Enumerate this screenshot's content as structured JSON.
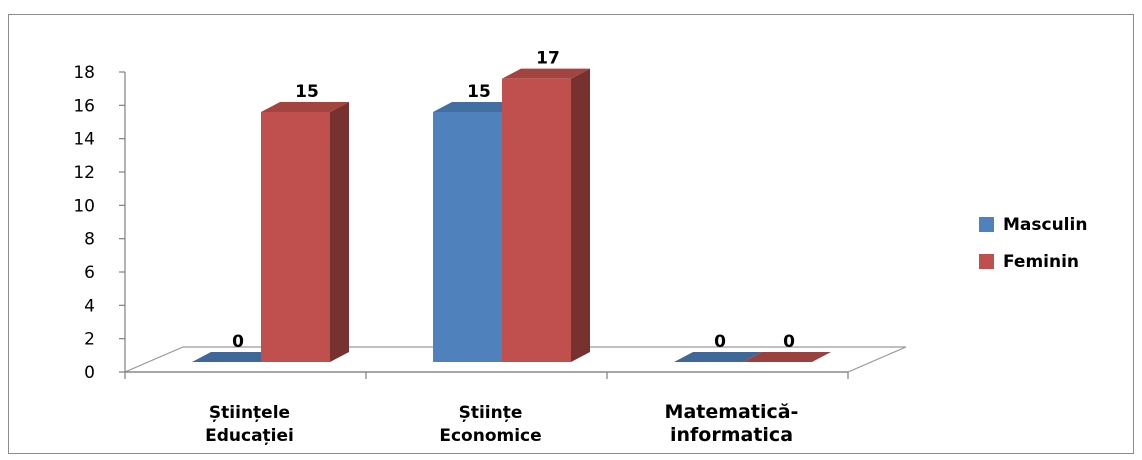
{
  "chart_data": {
    "type": "bar",
    "categories": [
      [
        "Științele",
        "Educației"
      ],
      [
        "Științe",
        "Economice"
      ],
      [
        "Matematică-",
        "informatica"
      ]
    ],
    "series": [
      {
        "name": "Masculin",
        "values": [
          0,
          15,
          0
        ],
        "color": "#4f81bd"
      },
      {
        "name": "Feminin",
        "values": [
          15,
          17,
          0
        ],
        "color": "#c0504d"
      }
    ],
    "ylim": [
      0,
      18
    ],
    "yticks": [
      0,
      2,
      4,
      6,
      8,
      10,
      12,
      14,
      16,
      18
    ],
    "legend_position": "right",
    "grid": false,
    "style": "3d-clustered-column"
  }
}
